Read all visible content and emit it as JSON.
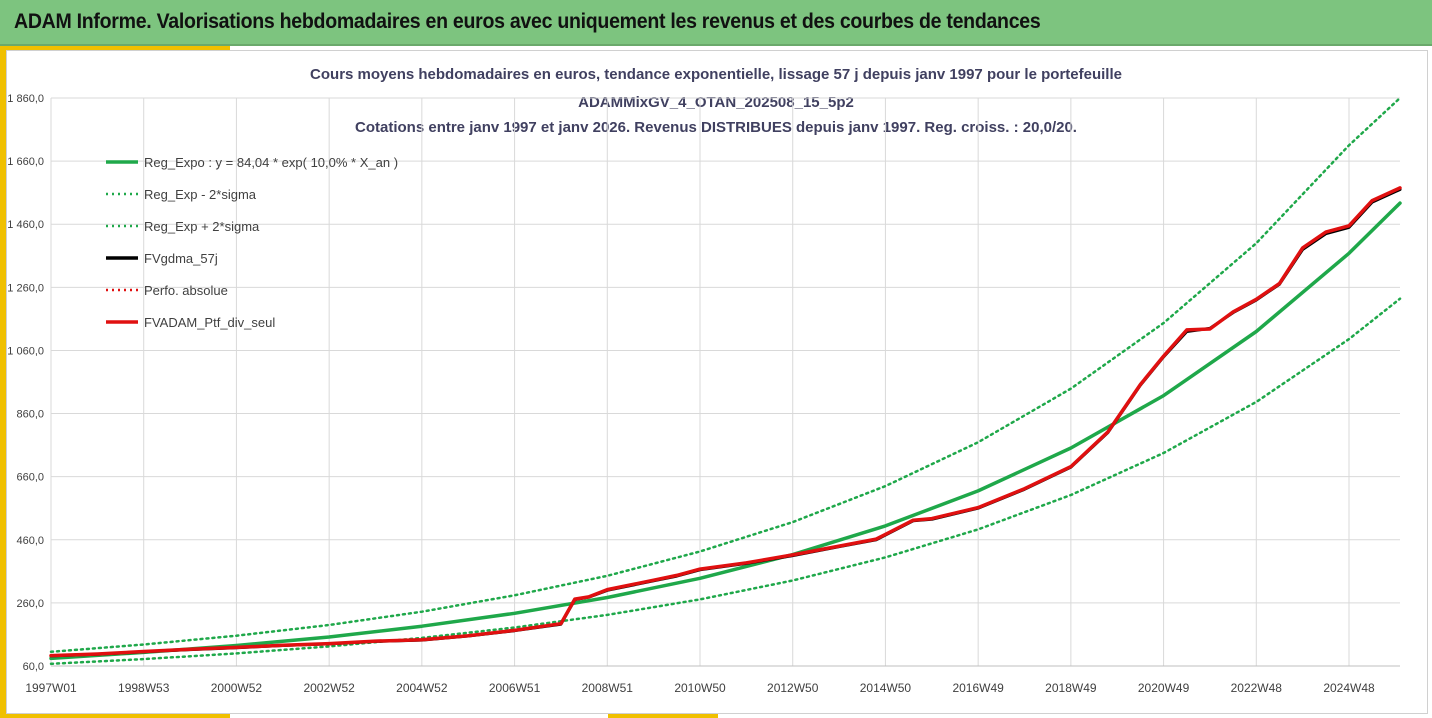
{
  "banner": {
    "title": "ADAM Informe. Valorisations hebdomadaires en euros avec uniquement les revenus et des courbes de tendances"
  },
  "chart_data": {
    "type": "line",
    "title_lines": [
      "Cours moyens hebdomadaires  en euros, tendance exponentielle, lissage 57 j depuis janv 1997 pour le portefeuille",
      "ADAMMixGV_4_OTAN_202508_15_5p2",
      "Cotations entre janv 1997 et janv 2026. Revenus DISTRIBUES depuis janv 1997. Reg. croiss. : 20,0/20."
    ],
    "ylim": [
      60,
      1860
    ],
    "y_ticks": [
      "1 860,0",
      "1 660,0",
      "1 460,0",
      "1 260,0",
      "1 060,0",
      "860,0",
      "660,0",
      "460,0",
      "260,0",
      "60,0"
    ],
    "y_tick_values": [
      1860,
      1660,
      1460,
      1260,
      1060,
      860,
      660,
      460,
      260,
      60
    ],
    "xlim": [
      1997.0,
      2026.1
    ],
    "x_ticks": [
      "1997W01",
      "1998W53",
      "2000W52",
      "2002W52",
      "2004W52",
      "2006W51",
      "2008W51",
      "2010W50",
      "2012W50",
      "2014W50",
      "2016W49",
      "2018W49",
      "2020W49",
      "2022W48",
      "2024W48"
    ],
    "x_tick_values": [
      1997.0,
      1999.0,
      2001.0,
      2003.0,
      2005.0,
      2007.0,
      2009.0,
      2011.0,
      2013.0,
      2015.0,
      2017.0,
      2019.0,
      2021.0,
      2023.0,
      2025.0
    ],
    "grid": true,
    "legend_position": "top-left",
    "series": [
      {
        "name": "Reg_Expo : y = 84,04 * exp( 10,0% *  X_an )",
        "style": "solid",
        "color": "#1fa84a",
        "x": [
          1997.0,
          1999.0,
          2001.0,
          2003.0,
          2005.0,
          2007.0,
          2009.0,
          2011.0,
          2013.0,
          2015.0,
          2017.0,
          2019.0,
          2021.0,
          2023.0,
          2025.0,
          2026.1
        ],
        "y": [
          84,
          103,
          125,
          152,
          186,
          227,
          277,
          338,
          413,
          504,
          615,
          751,
          917,
          1120,
          1368,
          1527
        ]
      },
      {
        "name": "Reg_Exp - 2*sigma",
        "style": "dotted",
        "color": "#1fa84a",
        "x": [
          1997.0,
          1999.0,
          2001.0,
          2003.0,
          2005.0,
          2007.0,
          2009.0,
          2011.0,
          2013.0,
          2015.0,
          2017.0,
          2019.0,
          2021.0,
          2023.0,
          2025.0,
          2026.1
        ],
        "y": [
          67,
          82,
          100,
          122,
          149,
          182,
          222,
          271,
          331,
          404,
          493,
          602,
          735,
          897,
          1096,
          1224
        ]
      },
      {
        "name": "Reg_Exp + 2*sigma",
        "style": "dotted",
        "color": "#1fa84a",
        "x": [
          1997.0,
          1999.0,
          2001.0,
          2003.0,
          2005.0,
          2007.0,
          2009.0,
          2011.0,
          2013.0,
          2015.0,
          2017.0,
          2019.0,
          2021.0,
          2023.0,
          2025.0,
          2026.1
        ],
        "y": [
          105,
          128,
          156,
          190,
          232,
          284,
          346,
          423,
          516,
          630,
          769,
          939,
          1147,
          1400,
          1710,
          1860
        ]
      },
      {
        "name": "FVgdma_57j",
        "style": "solid",
        "color": "#000000",
        "x": [
          1997.0,
          1998.0,
          1999.0,
          2000.0,
          2001.0,
          2002.0,
          2003.0,
          2004.0,
          2005.0,
          2006.0,
          2007.0,
          2008.0,
          2008.3,
          2008.6,
          2009.0,
          2010.0,
          2010.5,
          2011.0,
          2012.0,
          2013.0,
          2014.0,
          2014.8,
          2015.6,
          2016.0,
          2017.0,
          2018.0,
          2019.0,
          2019.8,
          2020.5,
          2021.0,
          2021.5,
          2022.0,
          2022.5,
          2023.0,
          2023.5,
          2024.0,
          2024.5,
          2025.0,
          2025.5,
          2026.1
        ],
        "y": [
          92,
          97,
          105,
          112,
          118,
          125,
          130,
          138,
          142,
          155,
          172,
          192,
          270,
          278,
          300,
          330,
          345,
          365,
          385,
          410,
          438,
          460,
          520,
          525,
          560,
          620,
          690,
          800,
          950,
          1040,
          1120,
          1130,
          1180,
          1220,
          1270,
          1380,
          1430,
          1450,
          1530,
          1570
        ]
      },
      {
        "name": "Perfo. absolue",
        "style": "dotted",
        "color": "#e01010",
        "x": [
          1997.0,
          2026.1
        ],
        "y": [
          92,
          92
        ],
        "visible": false
      },
      {
        "name": "FVADAM_Ptf_div_seul",
        "style": "solid",
        "color": "#e01010",
        "x": [
          1997.0,
          1998.0,
          1999.0,
          2000.0,
          2001.0,
          2002.0,
          2003.0,
          2004.0,
          2005.0,
          2006.0,
          2007.0,
          2008.0,
          2008.3,
          2008.6,
          2009.0,
          2010.0,
          2010.5,
          2011.0,
          2012.0,
          2013.0,
          2014.0,
          2014.8,
          2015.6,
          2016.0,
          2017.0,
          2018.0,
          2019.0,
          2019.8,
          2020.5,
          2021.0,
          2021.5,
          2022.0,
          2022.5,
          2023.0,
          2023.5,
          2024.0,
          2024.5,
          2025.0,
          2025.5,
          2026.1
        ],
        "y": [
          93,
          98,
          106,
          113,
          119,
          126,
          131,
          139,
          143,
          156,
          173,
          194,
          272,
          279,
          302,
          332,
          347,
          367,
          387,
          412,
          440,
          462,
          522,
          527,
          562,
          622,
          692,
          802,
          952,
          1042,
          1125,
          1128,
          1182,
          1222,
          1272,
          1385,
          1435,
          1455,
          1535,
          1575
        ]
      }
    ]
  }
}
